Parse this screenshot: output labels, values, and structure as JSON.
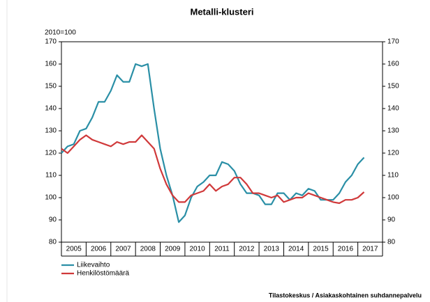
{
  "chart_data": {
    "type": "line",
    "title": "Metalli-klusteri",
    "y_unit": "2010=100",
    "source": "Tilastokeskus / Asiakaskohtainen suhdannepalvelu",
    "x": [
      2005,
      2005.25,
      2005.5,
      2005.75,
      2006,
      2006.25,
      2006.5,
      2006.75,
      2007,
      2007.25,
      2007.5,
      2007.75,
      2008,
      2008.25,
      2008.5,
      2008.75,
      2009,
      2009.25,
      2009.5,
      2009.75,
      2010,
      2010.25,
      2010.5,
      2010.75,
      2011,
      2011.25,
      2011.5,
      2011.75,
      2012,
      2012.25,
      2012.5,
      2012.75,
      2013,
      2013.25,
      2013.5,
      2013.75,
      2014,
      2014.25,
      2014.5,
      2014.75,
      2015,
      2015.25,
      2015.5,
      2015.75,
      2016,
      2016.25,
      2016.5,
      2016.75,
      2017,
      2017.25
    ],
    "series": [
      {
        "name": "Liikevaihto",
        "color": "#2a8fa6",
        "values": [
          120,
          123,
          124,
          130,
          131,
          136,
          143,
          143,
          148,
          155,
          152,
          152,
          160,
          159,
          160,
          140,
          122,
          110,
          101,
          89,
          92,
          100,
          105,
          107,
          110,
          110,
          116,
          115,
          112,
          106,
          102,
          102,
          101,
          97,
          97,
          102,
          102,
          99,
          102,
          101,
          104,
          103,
          99,
          99,
          99,
          102,
          107,
          110,
          115,
          118
        ]
      },
      {
        "name": "Henkilöstömäärä",
        "color": "#d0393a",
        "values": [
          122,
          120,
          123,
          126,
          128,
          126,
          125,
          124,
          123,
          125,
          124,
          125,
          125,
          128,
          125,
          122,
          113,
          106,
          101,
          98,
          98,
          101,
          102,
          103,
          106,
          103,
          105,
          106,
          109,
          109,
          106,
          102,
          102,
          101,
          100,
          101,
          98,
          99,
          100,
          100,
          102,
          101,
          100,
          99,
          98,
          97.5,
          99,
          99,
          100,
          102.5
        ]
      }
    ],
    "xlim": [
      2005,
      2018
    ],
    "xticks": [
      2005,
      2006,
      2007,
      2008,
      2009,
      2010,
      2011,
      2012,
      2013,
      2014,
      2015,
      2016,
      2017
    ],
    "ylim": [
      80,
      170
    ],
    "yticks": [
      80,
      90,
      100,
      110,
      120,
      130,
      140,
      150,
      160,
      170
    ],
    "y2lim": [
      80,
      170
    ],
    "y2ticks": [
      80,
      90,
      100,
      110,
      120,
      130,
      140,
      150,
      160,
      170
    ],
    "legend": "bottom-left"
  }
}
